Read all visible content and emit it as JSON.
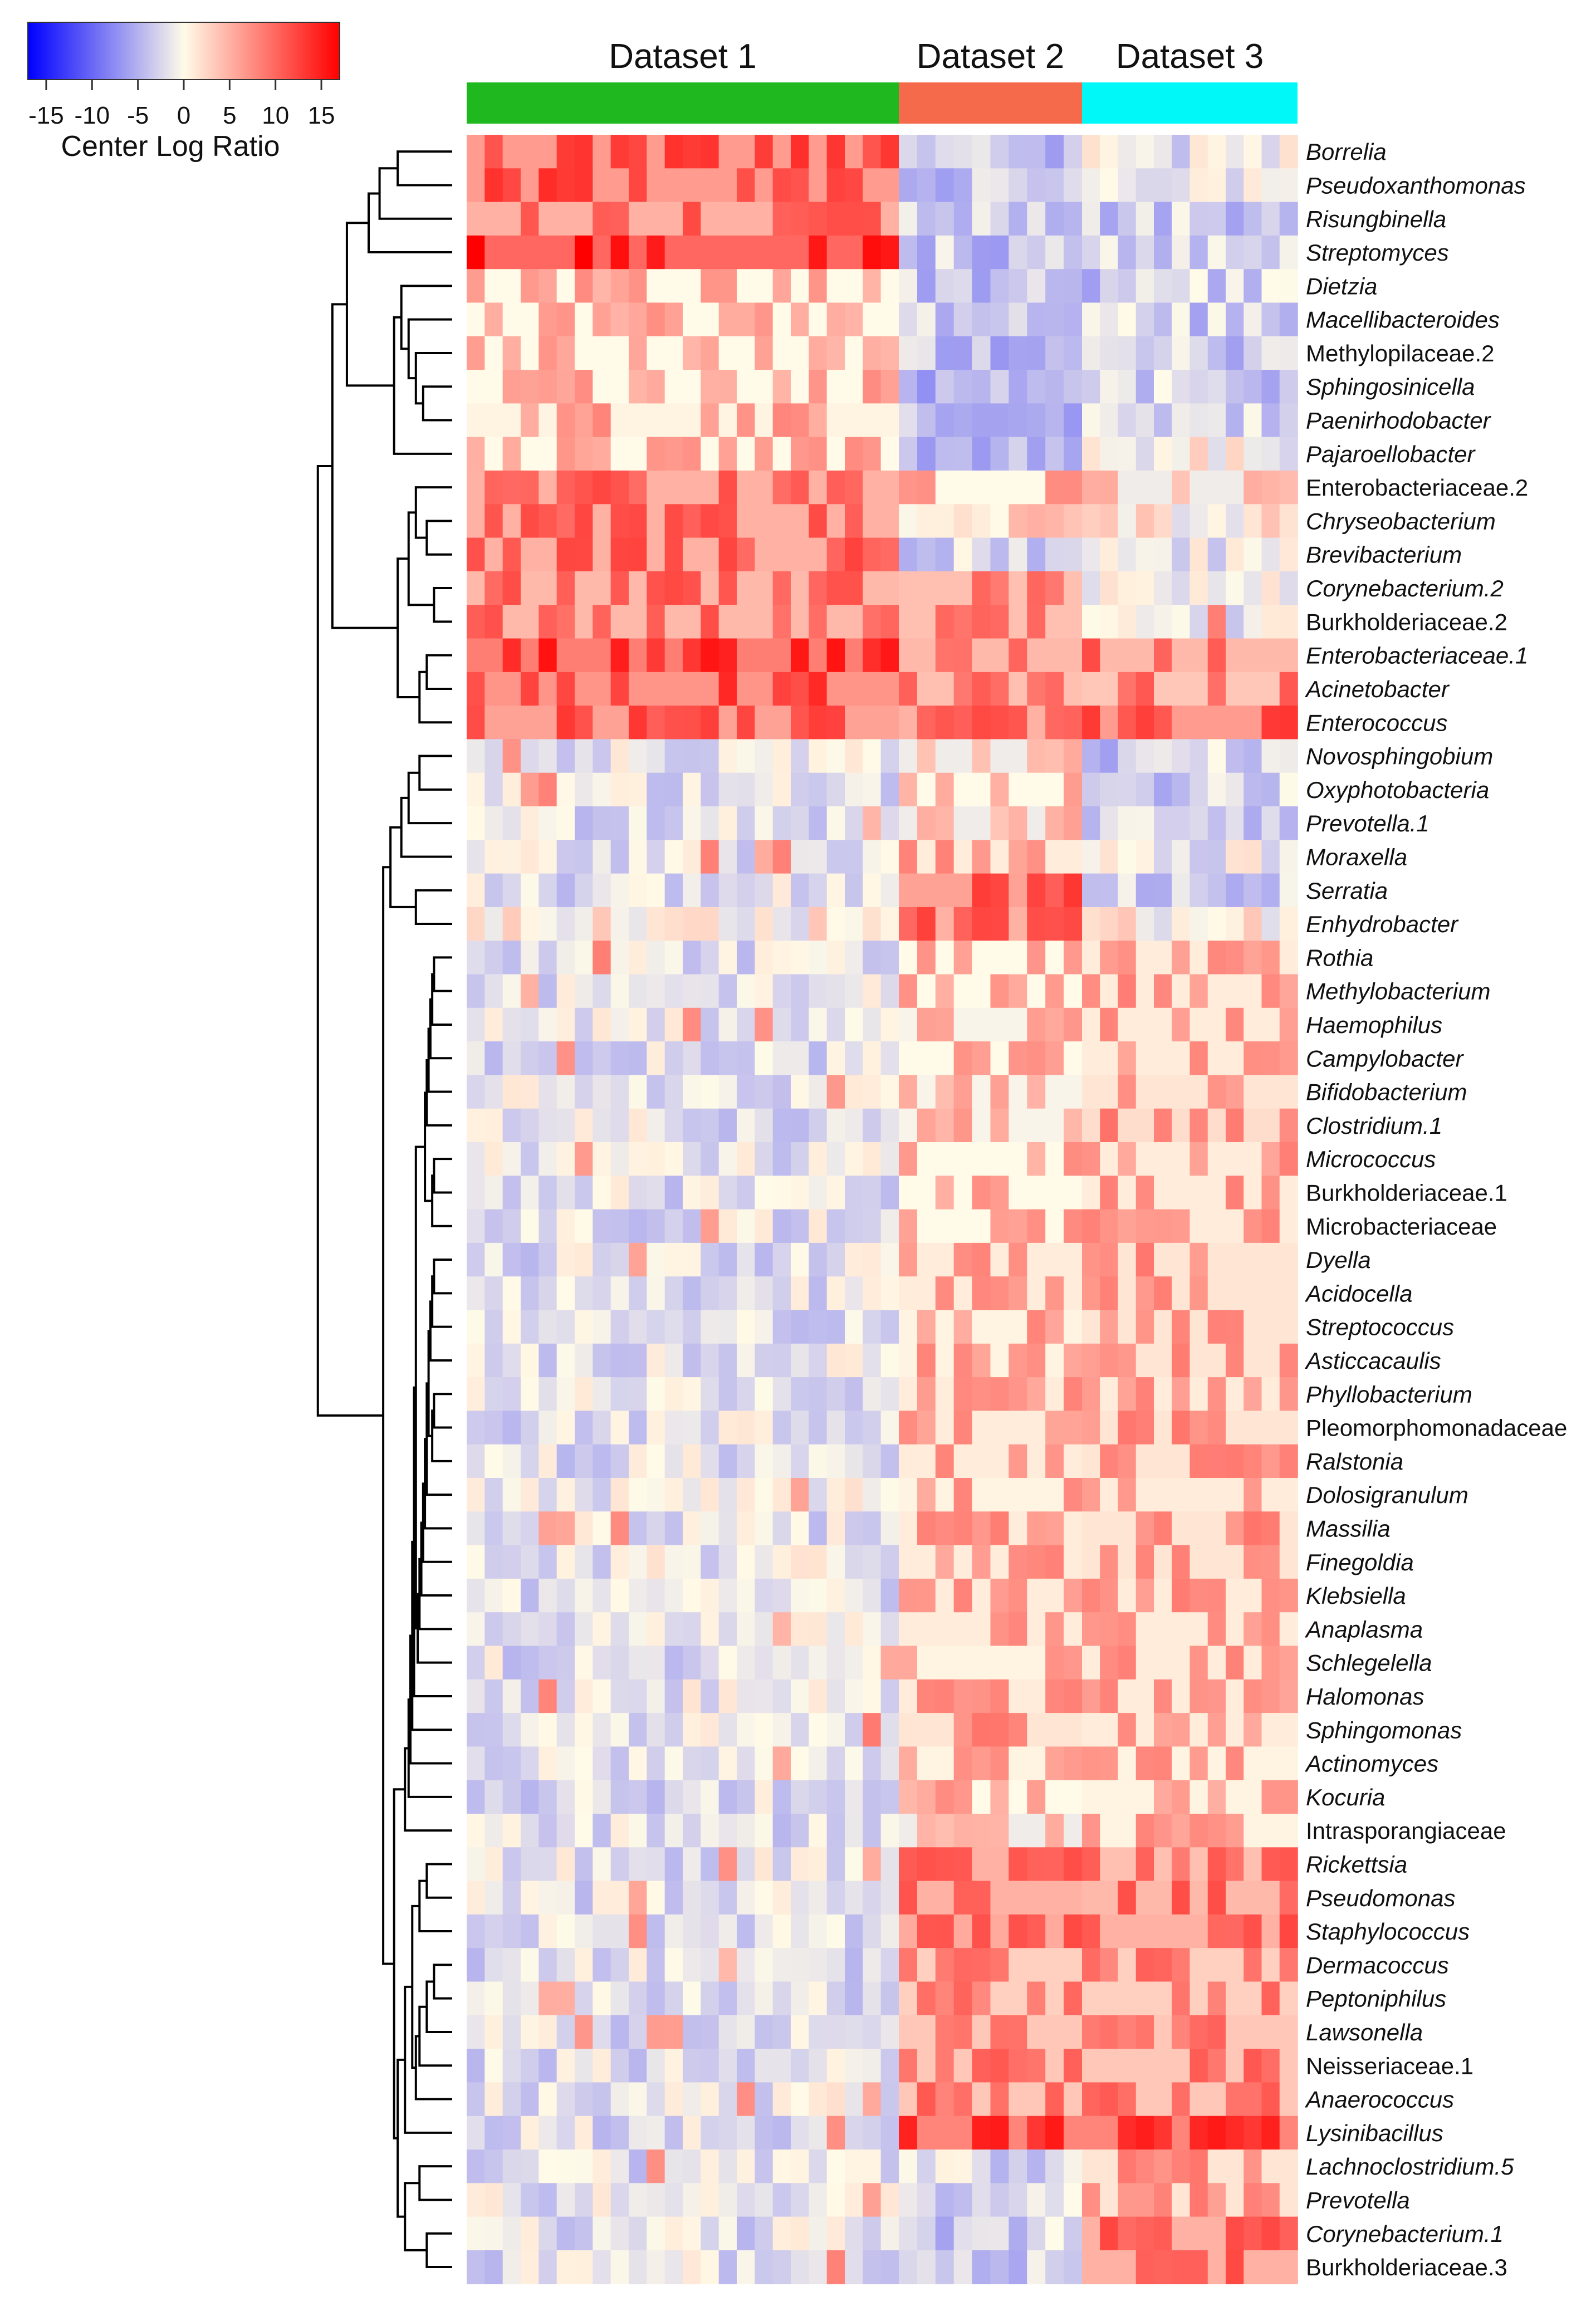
{
  "chart_data": {
    "type": "heatmap",
    "title": "",
    "legend": {
      "label": "Center Log Ratio",
      "ticks": [
        "-15",
        "-10",
        "-5",
        "0",
        "5",
        "10",
        "15"
      ],
      "range": [
        -17,
        17
      ],
      "colors": [
        "#0000ff",
        "#fffbe8",
        "#ff0000"
      ]
    },
    "datasets": [
      {
        "name": "Dataset 1",
        "color": "#1fb81f",
        "columns": 24
      },
      {
        "name": "Dataset 2",
        "color": "#f46a4a",
        "columns": 10
      },
      {
        "name": "Dataset 3",
        "color": "#00f8f8",
        "columns": 12
      }
    ],
    "rows": [
      {
        "label": "Borrelia",
        "italic": true,
        "d1": 12.5,
        "d2": -2.5,
        "d3": 0.5
      },
      {
        "label": "Pseudoxanthomonas",
        "italic": true,
        "d1": 12.5,
        "d2": -2.0,
        "d3": 1.5
      },
      {
        "label": "Risungbinella",
        "italic": true,
        "d1": 11.0,
        "d2": -2.0,
        "d3": -1.5
      },
      {
        "label": "Streptomyces",
        "italic": true,
        "d1": 16.0,
        "d2": -2.0,
        "d3": -1.5
      },
      {
        "label": "Dietzia",
        "italic": true,
        "d1": 6.0,
        "d2": -2.0,
        "d3": -1.5
      },
      {
        "label": "Macellibacteroides",
        "italic": true,
        "d1": 6.0,
        "d2": -2.0,
        "d3": -1.5
      },
      {
        "label": "Methylopilaceae.2",
        "italic": false,
        "d1": 6.0,
        "d2": -2.5,
        "d3": -1.5
      },
      {
        "label": "Sphingosinicella",
        "italic": true,
        "d1": 6.0,
        "d2": -2.5,
        "d3": -1.5
      },
      {
        "label": "Paenirhodobacter",
        "italic": true,
        "d1": 6.5,
        "d2": -2.0,
        "d3": -1.5
      },
      {
        "label": "Pajaroellobacter",
        "italic": true,
        "d1": 6.0,
        "d2": -2.0,
        "d3": 2.0
      },
      {
        "label": "Enterobacteriaceae.2",
        "italic": false,
        "d1": 11.0,
        "d2": 6.0,
        "d3": 5.0
      },
      {
        "label": "Chryseobacterium",
        "italic": true,
        "d1": 11.0,
        "d2": 4.0,
        "d3": 2.5
      },
      {
        "label": "Brevibacterium",
        "italic": true,
        "d1": 11.0,
        "d2": -1.0,
        "d3": 0.5
      },
      {
        "label": "Corynebacterium.2",
        "italic": true,
        "d1": 10.5,
        "d2": 10.0,
        "d3": 0.5
      },
      {
        "label": "Burkholderiaceae.2",
        "italic": false,
        "d1": 10.5,
        "d2": 10.0,
        "d3": 0.5
      },
      {
        "label": "Enterobacteriaceae.1",
        "italic": true,
        "d1": 14.5,
        "d2": 10.5,
        "d3": 10.5
      },
      {
        "label": "Acinetobacter",
        "italic": true,
        "d1": 13.0,
        "d2": 10.0,
        "d3": 9.5
      },
      {
        "label": "Enterococcus",
        "italic": true,
        "d1": 12.0,
        "d2": 11.0,
        "d3": 12.5
      },
      {
        "label": "Novosphingobium",
        "italic": true,
        "d1": 0.0,
        "d2": 5.0,
        "d3": -1.5
      },
      {
        "label": "Oxyphotobacteria",
        "italic": true,
        "d1": 0.0,
        "d2": 6.0,
        "d3": -1.5
      },
      {
        "label": "Prevotella.1",
        "italic": true,
        "d1": 0.0,
        "d2": 5.0,
        "d3": -1.0
      },
      {
        "label": "Moraxella",
        "italic": true,
        "d1": 0.5,
        "d2": 7.0,
        "d3": 1.0
      },
      {
        "label": "Serratia",
        "italic": true,
        "d1": 0.0,
        "d2": 12.0,
        "d3": -1.0
      },
      {
        "label": "Enhydrobacter",
        "italic": true,
        "d1": 2.0,
        "d2": 11.0,
        "d3": 2.0
      },
      {
        "label": "Rothia",
        "italic": true,
        "d1": 0.0,
        "d2": 6.0,
        "d3": 7.0
      },
      {
        "label": "Methylobacterium",
        "italic": true,
        "d1": 0.0,
        "d2": 6.0,
        "d3": 7.0
      },
      {
        "label": "Haemophilus",
        "italic": true,
        "d1": 0.0,
        "d2": 5.5,
        "d3": 7.0
      },
      {
        "label": "Campylobacter",
        "italic": true,
        "d1": 0.0,
        "d2": 6.0,
        "d3": 7.0
      },
      {
        "label": "Bifidobacterium",
        "italic": true,
        "d1": 0.0,
        "d2": 5.5,
        "d3": 7.5
      },
      {
        "label": "Clostridium.1",
        "italic": true,
        "d1": 0.0,
        "d2": 5.5,
        "d3": 8.0
      },
      {
        "label": "Micrococcus",
        "italic": true,
        "d1": 0.0,
        "d2": 6.0,
        "d3": 7.0
      },
      {
        "label": "Burkholderiaceae.1",
        "italic": false,
        "d1": 0.0,
        "d2": 6.0,
        "d3": 7.0
      },
      {
        "label": "Microbacteriaceae",
        "italic": false,
        "d1": 0.0,
        "d2": 6.0,
        "d3": 7.0
      },
      {
        "label": "Dyella",
        "italic": true,
        "d1": 0.0,
        "d2": 7.0,
        "d3": 7.5
      },
      {
        "label": "Acidocella",
        "italic": true,
        "d1": 0.0,
        "d2": 7.0,
        "d3": 7.5
      },
      {
        "label": "Streptococcus",
        "italic": true,
        "d1": 0.0,
        "d2": 6.5,
        "d3": 7.5
      },
      {
        "label": "Asticcacaulis",
        "italic": true,
        "d1": 0.0,
        "d2": 6.5,
        "d3": 7.5
      },
      {
        "label": "Phyllobacterium",
        "italic": true,
        "d1": 0.0,
        "d2": 7.0,
        "d3": 7.0
      },
      {
        "label": "Pleomorphomonadaceae",
        "italic": false,
        "d1": 0.0,
        "d2": 7.0,
        "d3": 7.5
      },
      {
        "label": "Ralstonia",
        "italic": true,
        "d1": 0.0,
        "d2": 7.0,
        "d3": 7.5
      },
      {
        "label": "Dolosigranulum",
        "italic": true,
        "d1": 0.5,
        "d2": 6.5,
        "d3": 7.0
      },
      {
        "label": "Massilia",
        "italic": true,
        "d1": 0.0,
        "d2": 7.0,
        "d3": 7.5
      },
      {
        "label": "Finegoldia",
        "italic": true,
        "d1": 0.5,
        "d2": 7.0,
        "d3": 7.5
      },
      {
        "label": "Klebsiella",
        "italic": true,
        "d1": 0.0,
        "d2": 7.0,
        "d3": 7.0
      },
      {
        "label": "Anaplasma",
        "italic": true,
        "d1": 0.0,
        "d2": 7.0,
        "d3": 7.0
      },
      {
        "label": "Schlegelella",
        "italic": true,
        "d1": 0.0,
        "d2": 6.5,
        "d3": 7.0
      },
      {
        "label": "Halomonas",
        "italic": true,
        "d1": 0.5,
        "d2": 7.0,
        "d3": 7.0
      },
      {
        "label": "Sphingomonas",
        "italic": true,
        "d1": 0.5,
        "d2": 7.5,
        "d3": 7.0
      },
      {
        "label": "Actinomyces",
        "italic": true,
        "d1": 0.5,
        "d2": 6.5,
        "d3": 6.5
      },
      {
        "label": "Kocuria",
        "italic": true,
        "d1": 0.0,
        "d2": 6.0,
        "d3": 6.5
      },
      {
        "label": "Intrasporangiaceae",
        "italic": false,
        "d1": 0.0,
        "d2": 5.0,
        "d3": 6.5
      },
      {
        "label": "Rickettsia",
        "italic": true,
        "d1": 0.0,
        "d2": 11.0,
        "d3": 10.0
      },
      {
        "label": "Pseudomonas",
        "italic": true,
        "d1": 0.0,
        "d2": 11.0,
        "d3": 10.5
      },
      {
        "label": "Staphylococcus",
        "italic": true,
        "d1": 0.0,
        "d2": 11.5,
        "d3": 11.0
      },
      {
        "label": "Dermacoccus",
        "italic": true,
        "d1": 0.0,
        "d2": 9.0,
        "d3": 9.0
      },
      {
        "label": "Peptoniphilus",
        "italic": true,
        "d1": 0.0,
        "d2": 9.0,
        "d3": 9.0
      },
      {
        "label": "Lawsonella",
        "italic": true,
        "d1": 0.0,
        "d2": 9.5,
        "d3": 9.5
      },
      {
        "label": "Neisseriaceae.1",
        "italic": false,
        "d1": 0.0,
        "d2": 9.5,
        "d3": 9.5
      },
      {
        "label": "Anaerococcus",
        "italic": true,
        "d1": 0.5,
        "d2": 9.5,
        "d3": 9.5
      },
      {
        "label": "Lysinibacillus",
        "italic": true,
        "d1": 0.0,
        "d2": 14.0,
        "d3": 14.0
      },
      {
        "label": "Lachnoclostridium.5",
        "italic": true,
        "d1": 0.0,
        "d2": -0.5,
        "d3": 7.5
      },
      {
        "label": "Prevotella",
        "italic": true,
        "d1": 0.0,
        "d2": -1.5,
        "d3": 7.5
      },
      {
        "label": "Corynebacterium.1",
        "italic": true,
        "d1": 0.0,
        "d2": -1.5,
        "d3": 11.0
      },
      {
        "label": "Burkholderiaceae.3",
        "italic": false,
        "d1": 0.0,
        "d2": -1.0,
        "d3": 11.0
      }
    ]
  }
}
